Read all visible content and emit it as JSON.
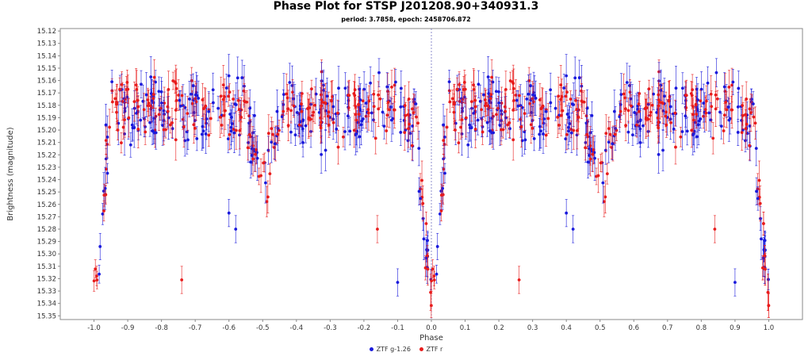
{
  "chart_data": {
    "type": "scatter",
    "title": "Phase Plot for STSP J201208.90+340931.3",
    "subtitle": "period: 3.7858, epoch: 2458706.872",
    "xlabel": "Phase",
    "ylabel": "Brightness (magnitude)",
    "xlim": [
      -1.1,
      1.1
    ],
    "ylim": [
      15.353,
      15.118
    ],
    "y_inverted": true,
    "x_ticks": [
      "-1.0",
      "-0.9",
      "-0.8",
      "-0.7",
      "-0.6",
      "-0.5",
      "-0.4",
      "-0.3",
      "-0.2",
      "-0.1",
      "0.0",
      "0.1",
      "0.2",
      "0.3",
      "0.4",
      "0.5",
      "0.6",
      "0.7",
      "0.8",
      "0.9",
      "1.0"
    ],
    "y_ticks": [
      "15.12",
      "15.13",
      "15.14",
      "15.15",
      "15.16",
      "15.17",
      "15.18",
      "15.19",
      "15.20",
      "15.21",
      "15.22",
      "15.23",
      "15.24",
      "15.25",
      "15.26",
      "15.27",
      "15.28",
      "15.29",
      "15.30",
      "15.31",
      "15.32",
      "15.33",
      "15.34",
      "15.35"
    ],
    "grid": false,
    "legend_position": "bottom-center",
    "reference_line_x": 0.0,
    "series": [
      {
        "name": "ZTF g-1.26",
        "color": "#1a1adc",
        "marker": "circle",
        "light_curve": {
          "baseline": 15.185,
          "scatter": 0.013,
          "error": 0.012,
          "n_per_cycle": 230,
          "primary_depth": 0.148,
          "primary_halfwidth": 0.045,
          "secondary_depth": 0.05,
          "secondary_halfwidth": 0.055
        }
      },
      {
        "name": "ZTF r",
        "color": "#e81c1c",
        "marker": "circle",
        "light_curve": {
          "baseline": 15.182,
          "scatter": 0.012,
          "error": 0.011,
          "n_per_cycle": 230,
          "primary_depth": 0.15,
          "primary_halfwidth": 0.045,
          "secondary_depth": 0.06,
          "secondary_halfwidth": 0.055
        }
      }
    ],
    "outliers": [
      {
        "series": "ZTF r",
        "x": -0.74,
        "y": 15.321
      },
      {
        "series": "ZTF r",
        "x": 0.26,
        "y": 15.321
      },
      {
        "series": "ZTF g-1.26",
        "x": -0.1,
        "y": 15.323
      },
      {
        "series": "ZTF g-1.26",
        "x": 0.9,
        "y": 15.323
      },
      {
        "series": "ZTF g-1.26",
        "x": -0.6,
        "y": 15.267
      },
      {
        "series": "ZTF g-1.26",
        "x": 0.4,
        "y": 15.267
      },
      {
        "series": "ZTF g-1.26",
        "x": -0.58,
        "y": 15.28
      },
      {
        "series": "ZTF g-1.26",
        "x": 0.42,
        "y": 15.28
      },
      {
        "series": "ZTF r",
        "x": -0.16,
        "y": 15.28
      },
      {
        "series": "ZTF r",
        "x": 0.84,
        "y": 15.28
      }
    ]
  }
}
